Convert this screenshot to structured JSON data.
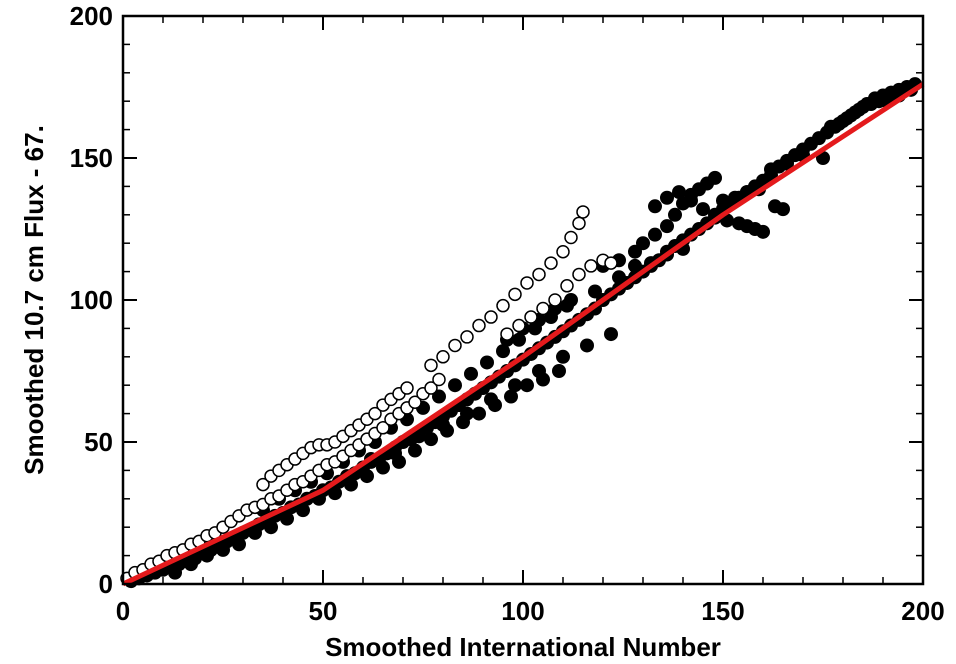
{
  "chart_data": {
    "type": "scatter",
    "title": "",
    "xlabel": "Smoothed International Number",
    "ylabel": "Smoothed 10.7 cm Flux - 67.",
    "xlim": [
      0,
      200
    ],
    "ylim": [
      0,
      200
    ],
    "x_ticks": [
      "0",
      "50",
      "100",
      "150",
      "200"
    ],
    "y_ticks": [
      "0",
      "50",
      "100",
      "150",
      "200"
    ],
    "grid": false,
    "legend": "none",
    "colors": {
      "filled": "#000000",
      "open_fill": "#ffffff",
      "open_stroke": "#000000",
      "fit_line": "#e41a1c"
    },
    "series": [
      {
        "marker": "filled-circle",
        "points": [
          [
            2,
            1
          ],
          [
            4,
            2
          ],
          [
            6,
            3
          ],
          [
            8,
            4
          ],
          [
            10,
            5
          ],
          [
            12,
            6
          ],
          [
            14,
            7
          ],
          [
            16,
            8
          ],
          [
            18,
            9
          ],
          [
            20,
            11
          ],
          [
            22,
            12
          ],
          [
            24,
            13
          ],
          [
            26,
            15
          ],
          [
            28,
            16
          ],
          [
            30,
            18
          ],
          [
            32,
            19
          ],
          [
            34,
            21
          ],
          [
            36,
            22
          ],
          [
            38,
            24
          ],
          [
            40,
            25
          ],
          [
            42,
            27
          ],
          [
            44,
            28
          ],
          [
            46,
            30
          ],
          [
            48,
            31
          ],
          [
            50,
            33
          ],
          [
            52,
            34
          ],
          [
            54,
            36
          ],
          [
            56,
            38
          ],
          [
            58,
            39
          ],
          [
            60,
            41
          ],
          [
            62,
            43
          ],
          [
            64,
            44
          ],
          [
            66,
            46
          ],
          [
            68,
            48
          ],
          [
            70,
            50
          ],
          [
            72,
            51
          ],
          [
            74,
            53
          ],
          [
            76,
            55
          ],
          [
            78,
            57
          ],
          [
            80,
            59
          ],
          [
            82,
            61
          ],
          [
            84,
            63
          ],
          [
            86,
            65
          ],
          [
            88,
            67
          ],
          [
            90,
            69
          ],
          [
            92,
            71
          ],
          [
            94,
            73
          ],
          [
            96,
            75
          ],
          [
            98,
            77
          ],
          [
            100,
            79
          ],
          [
            102,
            81
          ],
          [
            104,
            83
          ],
          [
            106,
            85
          ],
          [
            108,
            87
          ],
          [
            110,
            89
          ],
          [
            112,
            91
          ],
          [
            114,
            93
          ],
          [
            116,
            95
          ],
          [
            118,
            97
          ],
          [
            120,
            100
          ],
          [
            122,
            102
          ],
          [
            124,
            104
          ],
          [
            126,
            106
          ],
          [
            128,
            108
          ],
          [
            130,
            110
          ],
          [
            132,
            112
          ],
          [
            134,
            114
          ],
          [
            136,
            117
          ],
          [
            138,
            119
          ],
          [
            140,
            121
          ],
          [
            142,
            123
          ],
          [
            144,
            125
          ],
          [
            146,
            127
          ],
          [
            148,
            129
          ],
          [
            150,
            132
          ],
          [
            152,
            134
          ],
          [
            154,
            136
          ],
          [
            156,
            138
          ],
          [
            158,
            140
          ],
          [
            160,
            142
          ],
          [
            162,
            144
          ],
          [
            164,
            147
          ],
          [
            166,
            149
          ],
          [
            168,
            151
          ],
          [
            170,
            153
          ],
          [
            172,
            155
          ],
          [
            174,
            157
          ],
          [
            176,
            159
          ],
          [
            178,
            161
          ],
          [
            180,
            163
          ],
          [
            182,
            165
          ],
          [
            184,
            167
          ],
          [
            186,
            169
          ],
          [
            188,
            171
          ],
          [
            190,
            172
          ],
          [
            192,
            173
          ],
          [
            194,
            174
          ],
          [
            196,
            175
          ],
          [
            198,
            176
          ],
          [
            13,
            4
          ],
          [
            17,
            7
          ],
          [
            21,
            10
          ],
          [
            25,
            12
          ],
          [
            29,
            14
          ],
          [
            33,
            18
          ],
          [
            37,
            20
          ],
          [
            41,
            23
          ],
          [
            45,
            26
          ],
          [
            49,
            30
          ],
          [
            53,
            32
          ],
          [
            57,
            35
          ],
          [
            61,
            38
          ],
          [
            65,
            41
          ],
          [
            69,
            43
          ],
          [
            73,
            47
          ],
          [
            77,
            51
          ],
          [
            81,
            54
          ],
          [
            85,
            57
          ],
          [
            89,
            60
          ],
          [
            93,
            63
          ],
          [
            97,
            66
          ],
          [
            101,
            70
          ],
          [
            105,
            72
          ],
          [
            109,
            75
          ],
          [
            35,
            26
          ],
          [
            39,
            30
          ],
          [
            43,
            33
          ],
          [
            47,
            36
          ],
          [
            51,
            39
          ],
          [
            55,
            43
          ],
          [
            59,
            47
          ],
          [
            63,
            50
          ],
          [
            67,
            55
          ],
          [
            71,
            58
          ],
          [
            75,
            62
          ],
          [
            79,
            66
          ],
          [
            83,
            70
          ],
          [
            87,
            74
          ],
          [
            91,
            78
          ],
          [
            95,
            82
          ],
          [
            99,
            86
          ],
          [
            103,
            90
          ],
          [
            107,
            94
          ],
          [
            111,
            98
          ],
          [
            62,
            44
          ],
          [
            68,
            46
          ],
          [
            74,
            52
          ],
          [
            80,
            56
          ],
          [
            86,
            60
          ],
          [
            92,
            65
          ],
          [
            98,
            70
          ],
          [
            104,
            75
          ],
          [
            110,
            80
          ],
          [
            116,
            84
          ],
          [
            122,
            88
          ],
          [
            96,
            86
          ],
          [
            100,
            90
          ],
          [
            104,
            93
          ],
          [
            108,
            97
          ],
          [
            112,
            100
          ],
          [
            118,
            103
          ],
          [
            124,
            108
          ],
          [
            128,
            112
          ],
          [
            132,
            113
          ],
          [
            136,
            116
          ],
          [
            140,
            118
          ],
          [
            120,
            112
          ],
          [
            124,
            114
          ],
          [
            128,
            117
          ],
          [
            130,
            120
          ],
          [
            133,
            123
          ],
          [
            136,
            126
          ],
          [
            138,
            130
          ],
          [
            140,
            134
          ],
          [
            142,
            137
          ],
          [
            144,
            139
          ],
          [
            146,
            141
          ],
          [
            148,
            143
          ],
          [
            133,
            133
          ],
          [
            136,
            136
          ],
          [
            139,
            138
          ],
          [
            142,
            135
          ],
          [
            145,
            132
          ],
          [
            148,
            130
          ],
          [
            151,
            128
          ],
          [
            154,
            127
          ],
          [
            156,
            126
          ],
          [
            158,
            125
          ],
          [
            160,
            124
          ],
          [
            163,
            133
          ],
          [
            165,
            132
          ],
          [
            150,
            135
          ],
          [
            153,
            136
          ],
          [
            156,
            138
          ],
          [
            159,
            139
          ],
          [
            162,
            146
          ],
          [
            166,
            148
          ],
          [
            170,
            151
          ],
          [
            175,
            150
          ],
          [
            177,
            161
          ],
          [
            179,
            162
          ],
          [
            181,
            164
          ],
          [
            183,
            166
          ],
          [
            185,
            168
          ],
          [
            187,
            169
          ],
          [
            189,
            170
          ],
          [
            191,
            170
          ],
          [
            194,
            172
          ],
          [
            197,
            174
          ]
        ]
      },
      {
        "marker": "open-circle",
        "points": [
          [
            1,
            2
          ],
          [
            3,
            4
          ],
          [
            5,
            5
          ],
          [
            7,
            7
          ],
          [
            9,
            8
          ],
          [
            11,
            10
          ],
          [
            13,
            11
          ],
          [
            15,
            12
          ],
          [
            17,
            14
          ],
          [
            19,
            15
          ],
          [
            21,
            17
          ],
          [
            23,
            18
          ],
          [
            25,
            20
          ],
          [
            27,
            22
          ],
          [
            29,
            24
          ],
          [
            31,
            26
          ],
          [
            33,
            27
          ],
          [
            35,
            28
          ],
          [
            37,
            30
          ],
          [
            39,
            31
          ],
          [
            41,
            33
          ],
          [
            43,
            35
          ],
          [
            45,
            36
          ],
          [
            47,
            38
          ],
          [
            49,
            40
          ],
          [
            51,
            42
          ],
          [
            53,
            43
          ],
          [
            55,
            45
          ],
          [
            57,
            47
          ],
          [
            59,
            49
          ],
          [
            61,
            51
          ],
          [
            63,
            53
          ],
          [
            65,
            55
          ],
          [
            67,
            58
          ],
          [
            69,
            60
          ],
          [
            71,
            62
          ],
          [
            73,
            64
          ],
          [
            75,
            67
          ],
          [
            77,
            69
          ],
          [
            79,
            72
          ],
          [
            35,
            35
          ],
          [
            37,
            38
          ],
          [
            39,
            40
          ],
          [
            41,
            42
          ],
          [
            43,
            44
          ],
          [
            45,
            46
          ],
          [
            47,
            48
          ],
          [
            49,
            49
          ],
          [
            51,
            49
          ],
          [
            53,
            50
          ],
          [
            55,
            52
          ],
          [
            57,
            54
          ],
          [
            59,
            56
          ],
          [
            61,
            58
          ],
          [
            63,
            60
          ],
          [
            65,
            63
          ],
          [
            67,
            65
          ],
          [
            69,
            67
          ],
          [
            71,
            69
          ],
          [
            77,
            77
          ],
          [
            80,
            80
          ],
          [
            83,
            84
          ],
          [
            86,
            87
          ],
          [
            89,
            91
          ],
          [
            92,
            94
          ],
          [
            95,
            98
          ],
          [
            98,
            102
          ],
          [
            101,
            106
          ],
          [
            104,
            109
          ],
          [
            107,
            113
          ],
          [
            110,
            117
          ],
          [
            112,
            122
          ],
          [
            114,
            127
          ],
          [
            115,
            131
          ],
          [
            96,
            88
          ],
          [
            99,
            91
          ],
          [
            102,
            94
          ],
          [
            105,
            97
          ],
          [
            108,
            100
          ],
          [
            111,
            105
          ],
          [
            114,
            109
          ],
          [
            117,
            112
          ],
          [
            120,
            114
          ],
          [
            122,
            113
          ]
        ]
      },
      {
        "marker": "line",
        "points": [
          [
            0,
            0
          ],
          [
            50,
            33
          ],
          [
            100,
            80
          ],
          [
            150,
            130
          ],
          [
            200,
            176
          ]
        ]
      }
    ]
  }
}
